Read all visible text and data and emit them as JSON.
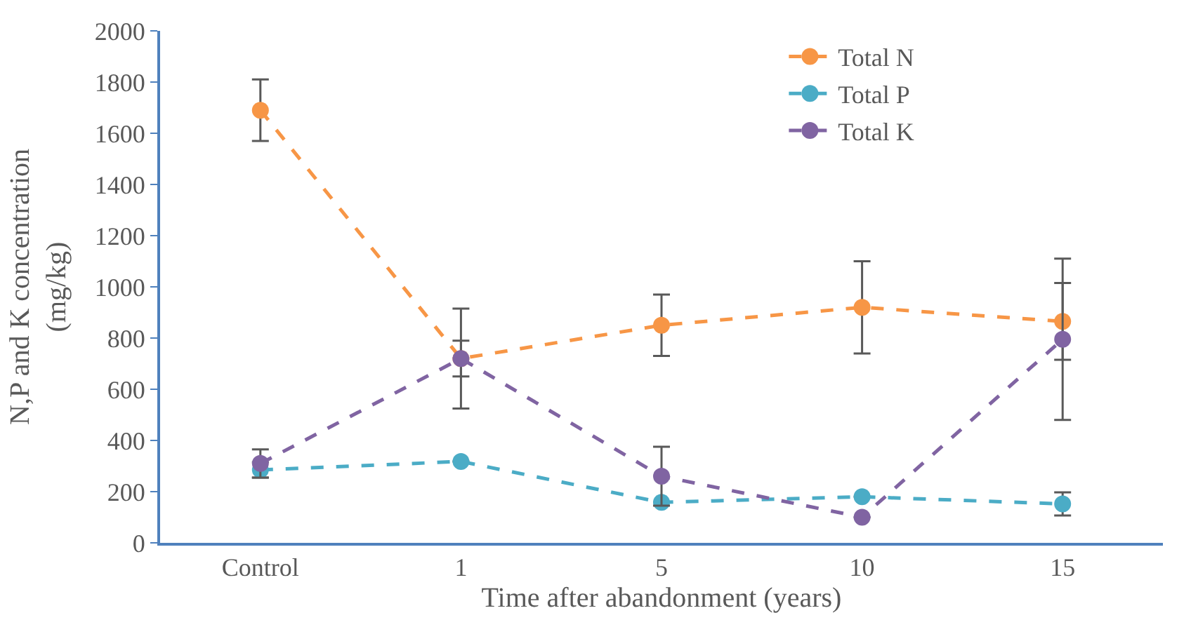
{
  "chart_data": {
    "type": "line",
    "categories": [
      "Control",
      "1",
      "5",
      "10",
      "15"
    ],
    "xlabel": "Time after abandonment (years)",
    "ylabel": "N,P and K concentration (mg/kg)",
    "ylim": [
      0,
      2000
    ],
    "yticks": [
      0,
      200,
      400,
      600,
      800,
      1000,
      1200,
      1400,
      1600,
      1800,
      2000
    ],
    "legend": "top right",
    "marker": "circle",
    "line_style": "dashed",
    "series": [
      {
        "name": "Total N",
        "color": "#f79646",
        "values": [
          1690,
          720,
          850,
          920,
          865
        ],
        "errors": [
          120,
          70,
          120,
          180,
          150
        ]
      },
      {
        "name": "Total P",
        "color": "#4bacc6",
        "values": [
          285,
          318,
          158,
          180,
          152
        ],
        "errors": [
          30,
          null,
          null,
          null,
          45
        ]
      },
      {
        "name": "Total K",
        "color": "#8064a2",
        "values": [
          310,
          720,
          260,
          100,
          795
        ],
        "errors": [
          55,
          195,
          115,
          null,
          315
        ]
      }
    ]
  }
}
